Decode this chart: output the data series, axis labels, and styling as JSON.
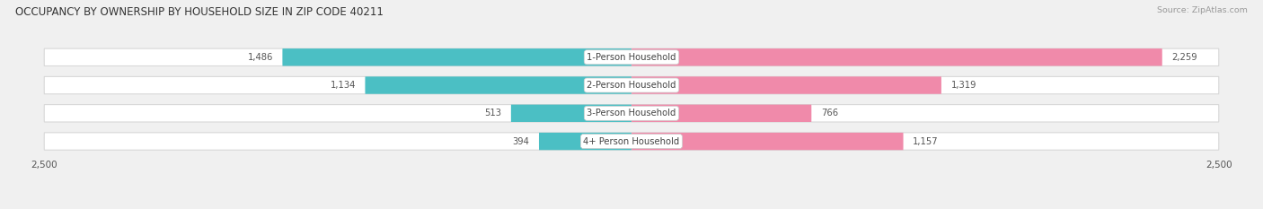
{
  "title": "OCCUPANCY BY OWNERSHIP BY HOUSEHOLD SIZE IN ZIP CODE 40211",
  "source": "Source: ZipAtlas.com",
  "categories": [
    "1-Person Household",
    "2-Person Household",
    "3-Person Household",
    "4+ Person Household"
  ],
  "owner_values": [
    1486,
    1134,
    513,
    394
  ],
  "renter_values": [
    2259,
    1319,
    766,
    1157
  ],
  "max_val": 2500,
  "owner_color": "#4bbfc4",
  "renter_color": "#f08aaa",
  "bg_color": "#f0f0f0",
  "row_bg_color": "#ffffff",
  "row_border_color": "#d8d8d8",
  "title_fontsize": 8.5,
  "label_fontsize": 7.2,
  "tick_fontsize": 7.5,
  "source_fontsize": 6.8,
  "legend_fontsize": 7.5,
  "value_color": "#555555",
  "category_color": "#444444"
}
